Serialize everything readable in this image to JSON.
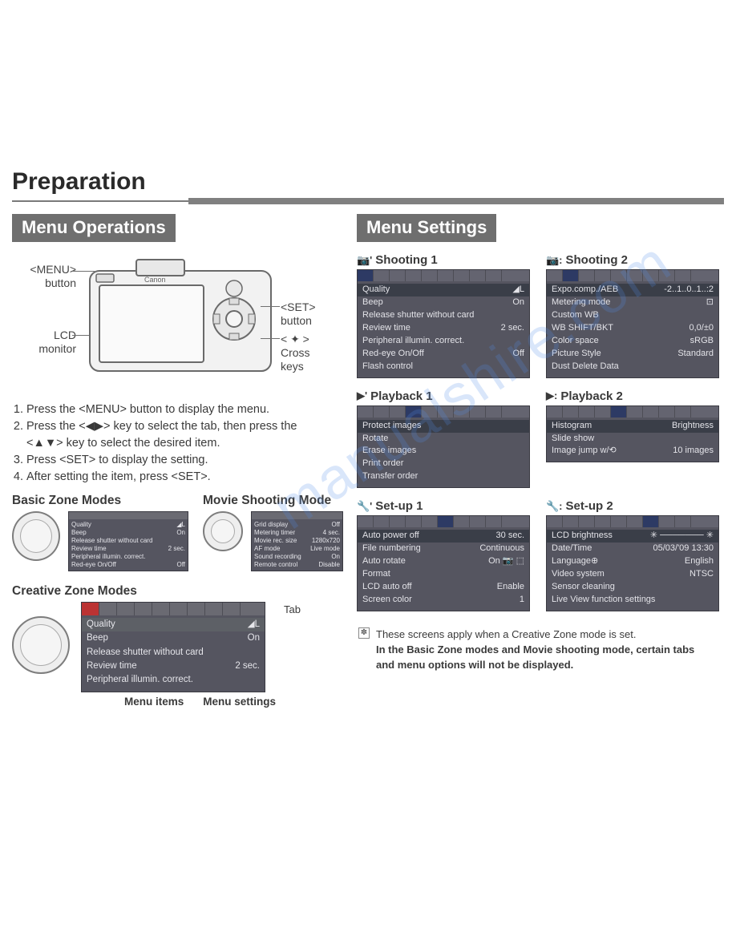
{
  "page_title": "Preparation",
  "left": {
    "section_header": "Menu Operations",
    "labels": {
      "menu_btn": "<MENU>\nbutton",
      "lcd": "LCD\nmonitor",
      "set_btn": "<SET> button",
      "cross_keys": "< ✦ >\nCross keys"
    },
    "steps": [
      "Press the <MENU> button to display the menu.",
      "Press the <◀▶> key to select the tab, then press the <▲▼> key to select the desired item.",
      "Press <SET> to display the setting.",
      "After setting the item, press <SET>."
    ],
    "basic_zone_title": "Basic Zone Modes",
    "basic_zone_menu": [
      [
        "Quality",
        "◢L"
      ],
      [
        "Beep",
        "On"
      ],
      [
        "Release shutter without card",
        ""
      ],
      [
        "Review time",
        "2 sec."
      ],
      [
        "Peripheral illumin. correct.",
        ""
      ],
      [
        "Red-eye On/Off",
        "Off"
      ]
    ],
    "movie_title": "Movie Shooting Mode",
    "movie_menu": [
      [
        "Grid display",
        "Off"
      ],
      [
        "Metering timer",
        "4 sec."
      ],
      [
        "Movie rec. size",
        "1280x720"
      ],
      [
        "AF mode",
        "Live mode"
      ],
      [
        "Sound recording",
        "On"
      ],
      [
        "Remote control",
        "Disable"
      ]
    ],
    "cz_title": "Creative Zone Modes",
    "cz_menu": [
      [
        "Quality",
        "◢L"
      ],
      [
        "Beep",
        "On"
      ],
      [
        "Release shutter without card",
        ""
      ],
      [
        "Review time",
        "2 sec."
      ],
      [
        "Peripheral illumin. correct.",
        ""
      ]
    ],
    "tab_label": "Tab",
    "menu_items_label": "Menu items",
    "menu_settings_label": "Menu settings"
  },
  "right": {
    "section_header": "Menu Settings",
    "blocks": [
      {
        "icon": "📷'",
        "title": "Shooting 1",
        "active_tab": 0,
        "rows": [
          [
            "Quality",
            "◢L"
          ],
          [
            "Beep",
            "On"
          ],
          [
            "Release shutter without card",
            ""
          ],
          [
            "Review time",
            "2 sec."
          ],
          [
            "Peripheral illumin. correct.",
            ""
          ],
          [
            "Red-eye On/Off",
            "Off"
          ],
          [
            "Flash control",
            ""
          ]
        ],
        "highlight": 0
      },
      {
        "icon": "📷:",
        "title": "Shooting 2",
        "active_tab": 1,
        "rows": [
          [
            "Expo.comp./AEB",
            "-2..1..0..1..:2"
          ],
          [
            "Metering mode",
            "⊡"
          ],
          [
            "Custom WB",
            ""
          ],
          [
            "WB SHIFT/BKT",
            "0,0/±0"
          ],
          [
            "Color space",
            "sRGB"
          ],
          [
            "Picture Style",
            "Standard"
          ],
          [
            "Dust Delete Data",
            ""
          ]
        ],
        "highlight": 0
      },
      {
        "icon": "▶'",
        "title": "Playback 1",
        "active_tab": 3,
        "rows": [
          [
            "Protect images",
            ""
          ],
          [
            "Rotate",
            ""
          ],
          [
            "Erase images",
            ""
          ],
          [
            "Print order",
            ""
          ],
          [
            "Transfer order",
            ""
          ]
        ],
        "highlight": 0
      },
      {
        "icon": "▶:",
        "title": "Playback 2",
        "active_tab": 4,
        "rows": [
          [
            "Histogram",
            "Brightness"
          ],
          [
            "Slide show",
            ""
          ],
          [
            "Image jump w/⟲",
            "10 images"
          ]
        ],
        "highlight": 0
      },
      {
        "icon": "🔧'",
        "title": "Set-up 1",
        "active_tab": 5,
        "rows": [
          [
            "Auto power off",
            "30 sec."
          ],
          [
            "File numbering",
            "Continuous"
          ],
          [
            "Auto rotate",
            "On 📷 ⬚"
          ],
          [
            "Format",
            ""
          ],
          [
            "LCD auto off",
            "Enable"
          ],
          [
            "Screen color",
            "1"
          ]
        ],
        "highlight": 0
      },
      {
        "icon": "🔧:",
        "title": "Set-up 2",
        "active_tab": 6,
        "rows": [
          [
            "LCD brightness",
            "✳ ─────── ✳"
          ],
          [
            "Date/Time",
            "05/03/'09 13:30"
          ],
          [
            "Language⊕",
            "English"
          ],
          [
            "Video system",
            "NTSC"
          ],
          [
            "Sensor cleaning",
            ""
          ],
          [
            "Live View function settings",
            ""
          ]
        ],
        "highlight": 0
      }
    ],
    "footnote_line1": "These screens apply when a Creative Zone mode is set.",
    "footnote_line2": "In the Basic Zone modes and Movie shooting mode, certain tabs and menu options will not be displayed."
  },
  "watermark": "manualshire.com",
  "colors": {
    "header_bg": "#6f6f6f",
    "menu_bg": "#555560",
    "menu_text": "#e3e3e8",
    "highlight_bg": "#3a3e48",
    "tab_active": "#2d3a64"
  }
}
